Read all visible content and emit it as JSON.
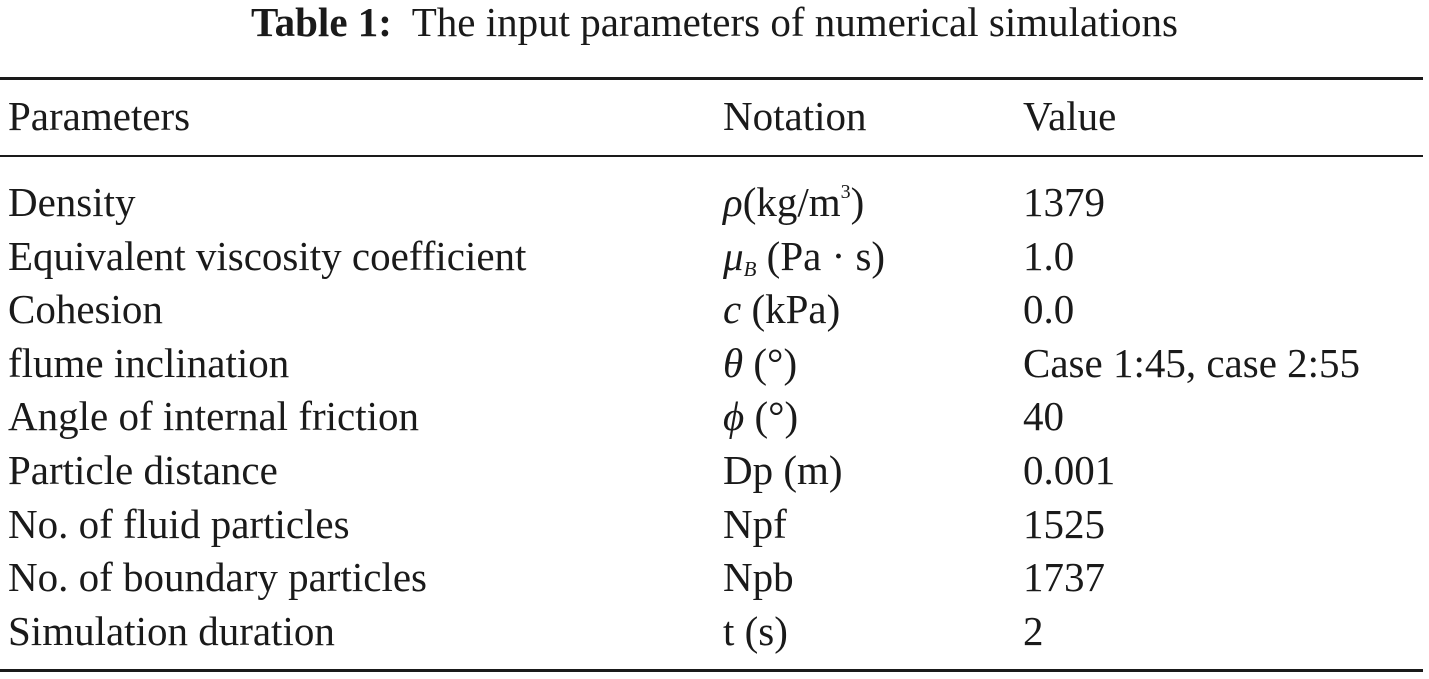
{
  "caption": {
    "label": "Table 1:",
    "text": "The input parameters of numerical simulations"
  },
  "table": {
    "headers": {
      "parameters": "Parameters",
      "notation": "Notation",
      "value": "Value"
    },
    "rows": [
      {
        "parameter": "Density",
        "notation_symbol": "ρ",
        "notation_sub": "",
        "notation_unit": "(kg/m",
        "notation_sup": "3",
        "notation_unit_end": ")",
        "value": "1379"
      },
      {
        "parameter": "Equivalent viscosity coefficient",
        "notation_symbol": "μ",
        "notation_sub": "B",
        "notation_unit": " (Pa · s)",
        "notation_sup": "",
        "notation_unit_end": "",
        "value": "1.0"
      },
      {
        "parameter": "Cohesion",
        "notation_symbol": "c",
        "notation_sub": "",
        "notation_unit": " (kPa)",
        "notation_sup": "",
        "notation_unit_end": "",
        "value": "0.0"
      },
      {
        "parameter": "flume inclination",
        "notation_symbol": "θ",
        "notation_sub": "",
        "notation_unit": " (°)",
        "notation_sup": "",
        "notation_unit_end": "",
        "value": "Case 1:45, case 2:55"
      },
      {
        "parameter": "Angle of internal friction",
        "notation_symbol": "ϕ",
        "notation_sub": "",
        "notation_unit": " (°)",
        "notation_sup": "",
        "notation_unit_end": "",
        "value": "40"
      },
      {
        "parameter": "Particle distance",
        "notation_symbol": "",
        "notation_sub": "",
        "notation_unit": "Dp (m)",
        "notation_sup": "",
        "notation_unit_end": "",
        "value": "0.001"
      },
      {
        "parameter": "No. of fluid particles",
        "notation_symbol": "",
        "notation_sub": "",
        "notation_unit": "Npf",
        "notation_sup": "",
        "notation_unit_end": "",
        "value": "1525"
      },
      {
        "parameter": "No. of boundary particles",
        "notation_symbol": "",
        "notation_sub": "",
        "notation_unit": "Npb",
        "notation_sup": "",
        "notation_unit_end": "",
        "value": "1737"
      },
      {
        "parameter": "Simulation duration",
        "notation_symbol": "",
        "notation_sub": "",
        "notation_unit": "t (s)",
        "notation_sup": "",
        "notation_unit_end": "",
        "value": "2"
      }
    ]
  }
}
